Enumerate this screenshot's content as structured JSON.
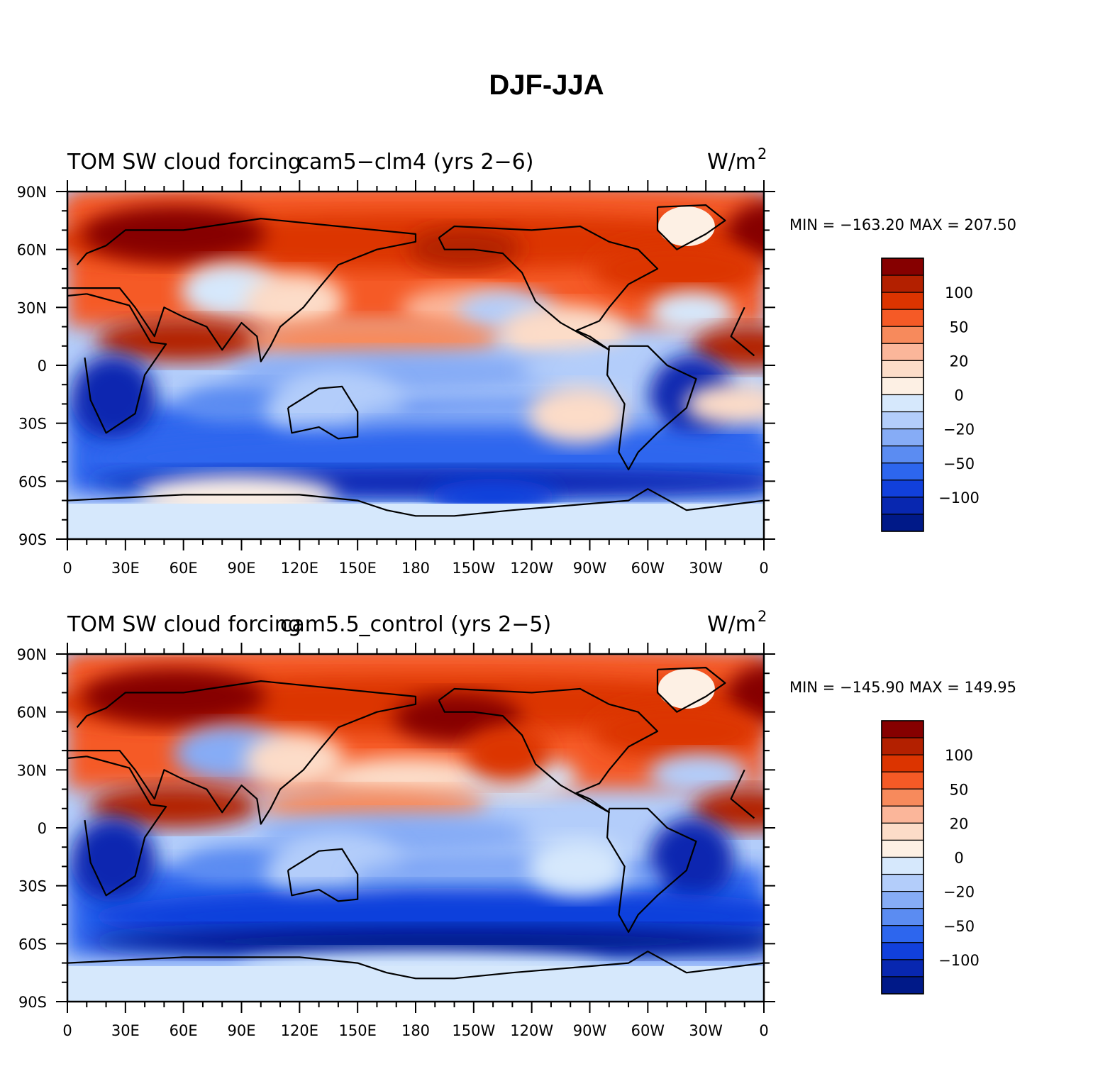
{
  "title": "DJF-JJA",
  "legend_labels": [
    "100",
    "50",
    "20",
    "0",
    "−20",
    "−50",
    "−100"
  ],
  "legend_colors": [
    "#860000",
    "#b32000",
    "#dc3400",
    "#f55a26",
    "#f78a5c",
    "#fbb69a",
    "#fcdcc8",
    "#fdf0e4",
    "#d6e8fc",
    "#b3cdfa",
    "#86acf6",
    "#5b8cf2",
    "#2d66ee",
    "#1140dc",
    "#0827b0",
    "#001988"
  ],
  "lon_ticks": [
    "0",
    "30E",
    "60E",
    "90E",
    "120E",
    "150E",
    "180",
    "150W",
    "120W",
    "90W",
    "60W",
    "30W",
    "0"
  ],
  "lat_ticks": [
    "90N",
    "60N",
    "30N",
    "0",
    "30S",
    "60S",
    "90S"
  ],
  "panels": [
    {
      "left_title": "TOM SW cloud forcing",
      "center_title": "cam5−clm4 (yrs 2−6)",
      "units": "W/m",
      "units_sup": "2",
      "min_max": "MIN = −163.20  MAX = 207.50"
    },
    {
      "left_title": "TOM SW cloud forcing",
      "center_title": "cam5.5_control (yrs 2−5)",
      "units": "W/m",
      "units_sup": "2",
      "min_max": "MIN = −145.90  MAX = 149.95"
    }
  ]
}
